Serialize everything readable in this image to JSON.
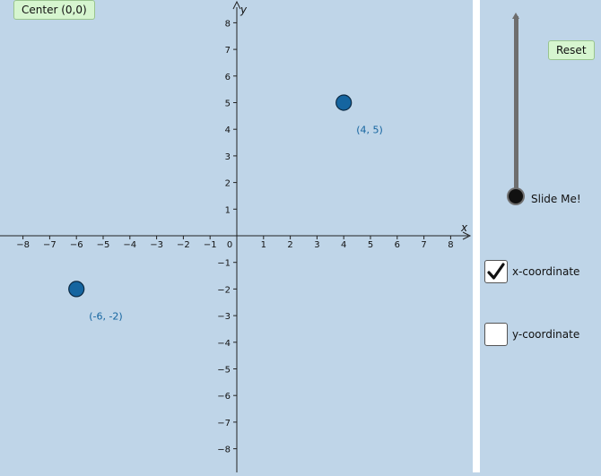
{
  "controls": {
    "center_button": "Center (0,0)",
    "reset_button": "Reset",
    "slider_label": "Slide Me!",
    "slider_value_fraction": 0,
    "x_checkbox": {
      "label": "x-coordinate",
      "checked": true
    },
    "y_checkbox": {
      "label": "y-coordinate",
      "checked": false
    }
  },
  "axes": {
    "x_label": "x",
    "y_label": "y",
    "x_ticks": [
      "−8",
      "−7",
      "−6",
      "−5",
      "−4",
      "−3",
      "−2",
      "−1",
      "1",
      "2",
      "3",
      "4",
      "5",
      "6",
      "7",
      "8"
    ],
    "y_ticks": [
      "8",
      "7",
      "6",
      "5",
      "4",
      "3",
      "2",
      "1",
      "−1",
      "−2",
      "−3",
      "−4",
      "−5",
      "−6",
      "−7",
      "−8"
    ],
    "origin_label": "0"
  },
  "points": [
    {
      "x": 4,
      "y": 5,
      "label": "(4, 5)"
    },
    {
      "x": -6,
      "y": -2,
      "label": "(-6, -2)"
    }
  ],
  "colors": {
    "background": "#bfd5e8",
    "point_fill": "#1565a0",
    "point_label": "#1565a0",
    "button_bg": "#d6f5cf"
  },
  "icons": {
    "checkmark": "check-icon"
  }
}
